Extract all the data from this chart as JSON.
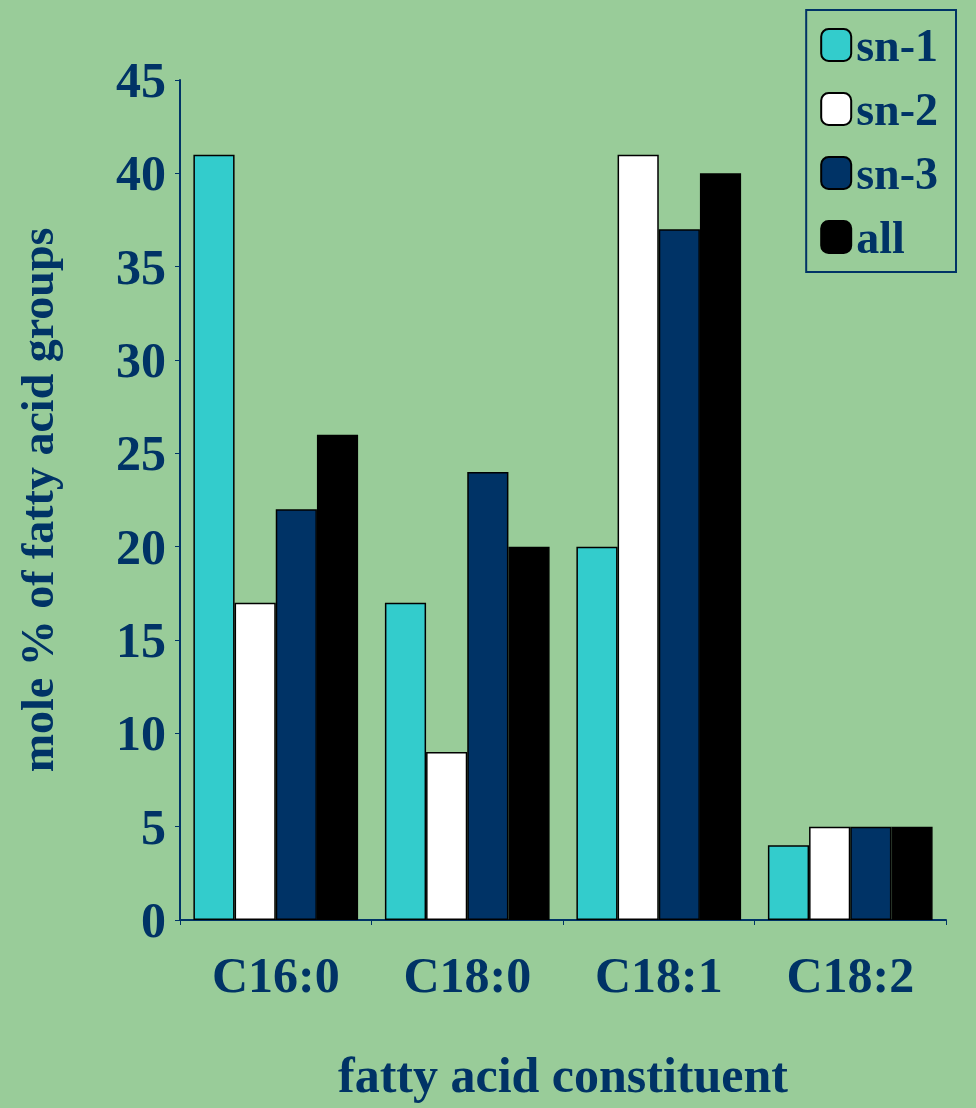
{
  "chart_data": {
    "type": "bar",
    "xlabel": "fatty acid constituent",
    "ylabel": "mole % of fatty acid groups",
    "categories": [
      "C16:0",
      "C18:0",
      "C18:1",
      "C18:2"
    ],
    "series": [
      {
        "name": "sn-1",
        "color": "#33cccc",
        "values": [
          41,
          17,
          20,
          4
        ]
      },
      {
        "name": "sn-2",
        "color": "#ffffff",
        "values": [
          17,
          9,
          41,
          5
        ]
      },
      {
        "name": "sn-3",
        "color": "#003366",
        "values": [
          22,
          24,
          37,
          5
        ]
      },
      {
        "name": "all",
        "color": "#000000",
        "values": [
          26,
          20,
          40,
          5
        ]
      }
    ],
    "ylim": [
      0,
      45
    ],
    "yticks": [
      0,
      5,
      10,
      15,
      20,
      25,
      30,
      35,
      40,
      45
    ],
    "grid": false,
    "legend": "top right"
  }
}
